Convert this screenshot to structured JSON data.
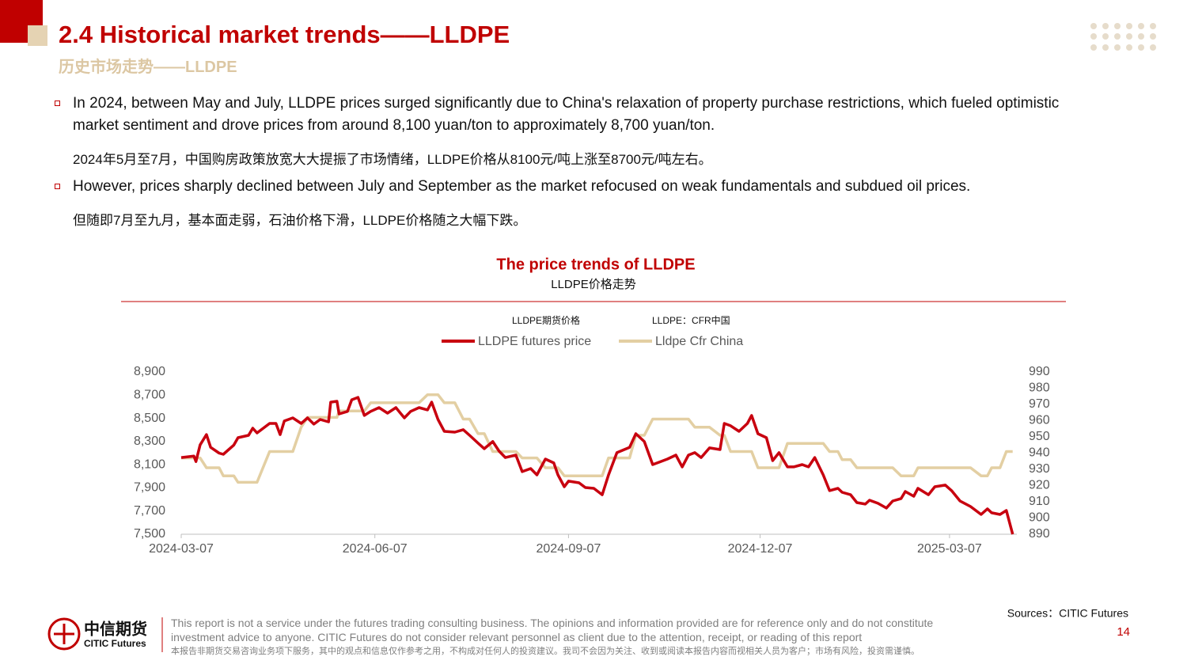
{
  "header": {
    "title": "2.4 Historical market trends——LLDPE",
    "subtitle": "历史市场走势——LLDPE"
  },
  "bullets": [
    {
      "en": "In 2024, between May and July, LLDPE prices surged significantly due to China's relaxation of property purchase restrictions, which fueled optimistic market sentiment and drove prices from around 8,100 yuan/ton to approximately 8,700 yuan/ton.",
      "zh": "2024年5月至7月，中国购房政策放宽大大提振了市场情绪，LLDPE价格从8100元/吨上涨至8700元/吨左右。"
    },
    {
      "en": "However, prices sharply declined between July and September as the market refocused on weak fundamentals and subdued oil prices.",
      "zh": "但随即7月至九月，基本面走弱，石油价格下滑，LLDPE价格随之大幅下跌。"
    }
  ],
  "chart_data": {
    "type": "line",
    "title": "The price trends of LLDPE",
    "subtitle": "LLDPE价格走势",
    "x": [
      "2024-03-07",
      "2024-03-13",
      "2024-03-14",
      "2024-03-16",
      "2024-03-19",
      "2024-03-21",
      "2024-03-25",
      "2024-03-27",
      "2024-04-01",
      "2024-04-03",
      "2024-04-08",
      "2024-04-10",
      "2024-04-12",
      "2024-04-18",
      "2024-04-21",
      "2024-04-23",
      "2024-04-25",
      "2024-04-29",
      "2024-05-03",
      "2024-05-06",
      "2024-05-09",
      "2024-05-12",
      "2024-05-16",
      "2024-05-17",
      "2024-05-20",
      "2024-05-21",
      "2024-05-25",
      "2024-05-27",
      "2024-05-30",
      "2024-06-02",
      "2024-06-05",
      "2024-06-09",
      "2024-06-13",
      "2024-06-17",
      "2024-06-21",
      "2024-06-24",
      "2024-06-28",
      "2024-07-02",
      "2024-07-04",
      "2024-07-07",
      "2024-07-10",
      "2024-07-15",
      "2024-07-19",
      "2024-07-22",
      "2024-07-26",
      "2024-07-29",
      "2024-08-02",
      "2024-08-05",
      "2024-08-08",
      "2024-08-13",
      "2024-08-16",
      "2024-08-20",
      "2024-08-23",
      "2024-08-27",
      "2024-08-31",
      "2024-09-02",
      "2024-09-05",
      "2024-09-07",
      "2024-09-12",
      "2024-09-15",
      "2024-09-19",
      "2024-09-23",
      "2024-09-26",
      "2024-09-30",
      "2024-10-06",
      "2024-10-09",
      "2024-10-13",
      "2024-10-17",
      "2024-10-21",
      "2024-10-24",
      "2024-10-28",
      "2024-10-31",
      "2024-11-03",
      "2024-11-06",
      "2024-11-09",
      "2024-11-13",
      "2024-11-18",
      "2024-11-20",
      "2024-11-23",
      "2024-11-27",
      "2024-12-01",
      "2024-12-03",
      "2024-12-06",
      "2024-12-10",
      "2024-12-13",
      "2024-12-16",
      "2024-12-20",
      "2024-12-23",
      "2024-12-27",
      "2024-12-30",
      "2025-01-02",
      "2025-01-06",
      "2025-01-09",
      "2025-01-13",
      "2025-01-15",
      "2025-01-19",
      "2025-01-22",
      "2025-01-26",
      "2025-01-28",
      "2025-02-01",
      "2025-02-05",
      "2025-02-08",
      "2025-02-12",
      "2025-02-14",
      "2025-02-18",
      "2025-02-20",
      "2025-02-25",
      "2025-02-28",
      "2025-03-05",
      "2025-03-08",
      "2025-03-12",
      "2025-03-17",
      "2025-03-22",
      "2025-03-25",
      "2025-03-27",
      "2025-03-31",
      "2025-04-03",
      "2025-04-06"
    ],
    "series": [
      {
        "name": "LLDPE futures price",
        "name_zh": "LLDPE期货价格",
        "color": "#c8000f",
        "values": [
          8162,
          8175,
          8127,
          8271,
          8360,
          8250,
          8200,
          8190,
          8270,
          8333,
          8354,
          8415,
          8374,
          8456,
          8456,
          8360,
          8477,
          8504,
          8456,
          8504,
          8450,
          8490,
          8470,
          8640,
          8647,
          8538,
          8560,
          8660,
          8681,
          8525,
          8560,
          8593,
          8545,
          8593,
          8504,
          8560,
          8593,
          8573,
          8640,
          8490,
          8388,
          8381,
          8402,
          8354,
          8286,
          8238,
          8300,
          8217,
          8162,
          8183,
          8040,
          8067,
          8012,
          8149,
          8115,
          8012,
          7910,
          7958,
          7944,
          7903,
          7896,
          7841,
          8012,
          8204,
          8250,
          8367,
          8300,
          8101,
          8128,
          8149,
          8183,
          8081,
          8183,
          8204,
          8162,
          8245,
          8231,
          8456,
          8436,
          8388,
          8456,
          8525,
          8367,
          8333,
          8135,
          8204,
          8081,
          8081,
          8101,
          8081,
          8162,
          8012,
          7876,
          7896,
          7862,
          7841,
          7773,
          7760,
          7794,
          7767,
          7726,
          7787,
          7808,
          7869,
          7828,
          7896,
          7841,
          7910,
          7924,
          7876,
          7787,
          7739,
          7671,
          7719,
          7685,
          7671,
          7705,
          7500
        ]
      },
      {
        "name": "Lldpe Cfr China",
        "name_zh": "LLDPE：CFR中国",
        "color": "#e3cfa3",
        "axis": "y2",
        "values": [
          937,
          937,
          937,
          937,
          931,
          931,
          931,
          926,
          926,
          922,
          922,
          922,
          922,
          941,
          941,
          941,
          941,
          941,
          956,
          962,
          962,
          962,
          962,
          962,
          962,
          966,
          966,
          966,
          966,
          966,
          971,
          971,
          971,
          971,
          971,
          971,
          971,
          976,
          976,
          976,
          971,
          971,
          961,
          961,
          952,
          952,
          941,
          941,
          941,
          941,
          937,
          937,
          937,
          931,
          931,
          931,
          926,
          926,
          926,
          926,
          926,
          926,
          937,
          937,
          937,
          951,
          951,
          961,
          961,
          961,
          961,
          961,
          961,
          956,
          956,
          956,
          951,
          951,
          941,
          941,
          941,
          941,
          931,
          931,
          931,
          931,
          946,
          946,
          946,
          946,
          946,
          946,
          941,
          941,
          936,
          936,
          931,
          931,
          931,
          931,
          931,
          931,
          926,
          926,
          926,
          931,
          931,
          931,
          931,
          931,
          931,
          931,
          926,
          926,
          931,
          931,
          941,
          941
        ]
      }
    ],
    "xlim": [
      "2024-03-07",
      "2025-04-08"
    ],
    "xticks": [
      "2024-03-07",
      "2024-06-07",
      "2024-09-07",
      "2024-12-07",
      "2025-03-07"
    ],
    "ylim": [
      7500,
      8900
    ],
    "yticks": [
      {
        "value": 7500,
        "label": "7,500"
      },
      {
        "value": 7700,
        "label": "7,700"
      },
      {
        "value": 7900,
        "label": "7,900"
      },
      {
        "value": 8100,
        "label": "8,100"
      },
      {
        "value": 8300,
        "label": "8,300"
      },
      {
        "value": 8500,
        "label": "8,500"
      },
      {
        "value": 8700,
        "label": "8,700"
      },
      {
        "value": 8900,
        "label": "8,900"
      }
    ],
    "y2lim": [
      890,
      990
    ],
    "y2ticks": [
      890,
      900,
      910,
      920,
      930,
      940,
      950,
      960,
      970,
      980,
      990
    ],
    "source": "Sources：CITIC Futures"
  },
  "footer": {
    "logo_cn": "中信期货",
    "logo_en": "CITIC Futures",
    "disclaimer_en": "This report is not a service under the futures trading consulting business. The opinions and information provided are for reference only and do not constitute investment advice to anyone. CITIC Futures do not consider relevant personnel as client due to the attention, receipt, or reading of this report",
    "disclaimer_zh": "本报告非期货交易咨询业务项下服务，其中的观点和信息仅作参考之用，不构成对任何人的投资建议。我司不会因为关注、收到或阅读本报告内容而视相关人员为客户；市场有风险，投资需谨慎。",
    "page": 14
  }
}
